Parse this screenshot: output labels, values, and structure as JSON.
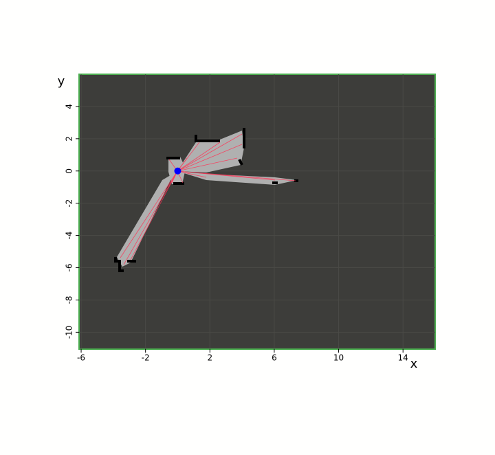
{
  "chart_data": {
    "type": "occupancy_map",
    "x_label": "x",
    "y_label": "y",
    "xlim": [
      -6.13,
      16.0
    ],
    "ylim": [
      -11.05,
      6.0
    ],
    "xticks": [
      -6,
      -2,
      2,
      6,
      10,
      14
    ],
    "yticks": [
      4,
      2,
      0,
      -2,
      -4,
      -6,
      -8,
      -10
    ],
    "grid": true,
    "robot": {
      "x": [
        0
      ],
      "values": [
        0
      ],
      "color": "#0000ff"
    }
  }
}
